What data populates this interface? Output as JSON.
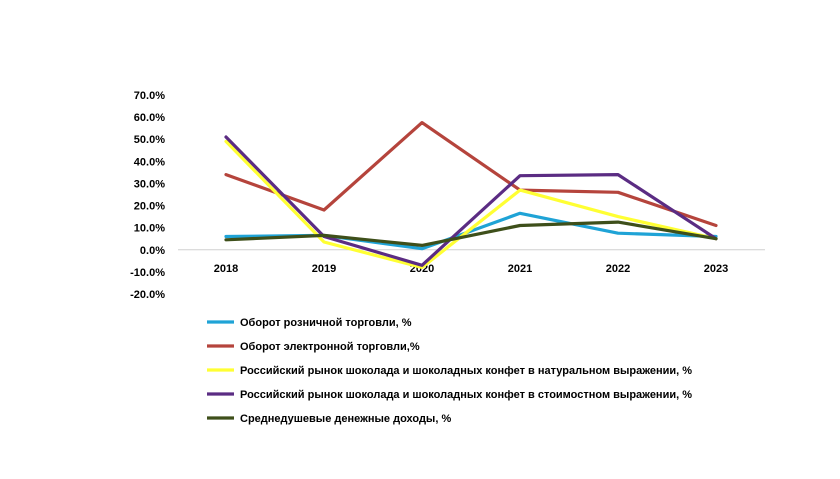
{
  "chart_data": {
    "type": "line",
    "x": [
      "2018",
      "2019",
      "2020",
      "2021",
      "2022",
      "2023"
    ],
    "y_ticks": [
      "70.0%",
      "60.0%",
      "50.0%",
      "40.0%",
      "30.0%",
      "20.0%",
      "10.0%",
      "0.0%",
      "-10.0%",
      "-20.0%"
    ],
    "ylim": [
      -20,
      70
    ],
    "y_unit": "%",
    "grid": false,
    "legend_position": "bottom-left",
    "series": [
      {
        "name": "Оборот розничной торговли, %",
        "color": "#1fa3d6",
        "values": [
          6.0,
          6.5,
          0.5,
          16.5,
          7.5,
          6.0
        ]
      },
      {
        "name": "Оборот электронной торговли,%",
        "color": "#b5443c",
        "values": [
          34.0,
          18.0,
          57.5,
          27.0,
          26.0,
          11.0
        ]
      },
      {
        "name": "Российский рынок шоколада и шоколадных конфет в натуральном выражении, %",
        "color": "#ffff33",
        "values": [
          49.0,
          3.5,
          -8.0,
          27.0,
          15.0,
          5.0
        ]
      },
      {
        "name": "Российский рынок шоколада и шоколадных конфет в стоимостном выражении, %",
        "color": "#5b2c83",
        "values": [
          51.0,
          6.0,
          -7.0,
          33.5,
          34.0,
          5.0
        ]
      },
      {
        "name": "Среднедушевые денежные доходы, %",
        "color": "#3e4f1a",
        "values": [
          4.5,
          6.5,
          2.0,
          11.0,
          12.5,
          5.0
        ]
      }
    ]
  }
}
